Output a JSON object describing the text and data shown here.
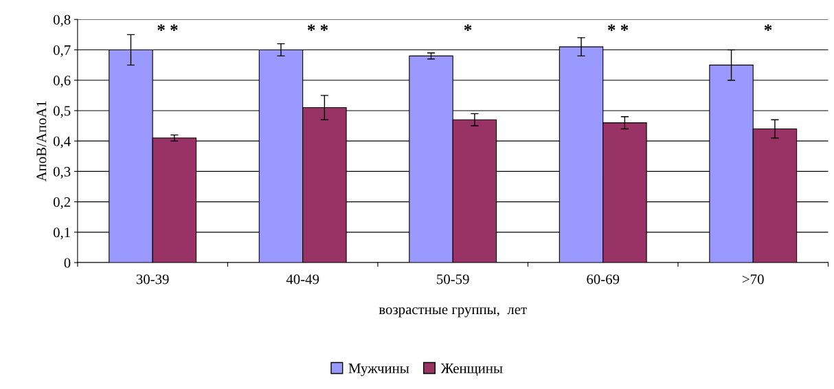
{
  "chart_data": {
    "type": "bar",
    "xlabel": "возрастные группы,  лет",
    "ylabel": "АпоВ/АпоА1",
    "categories": [
      "30-39",
      "40-49",
      "50-59",
      "60-69",
      ">70"
    ],
    "series": [
      {
        "name": "Мужчины",
        "color": "#9999ff",
        "values": [
          0.7,
          0.7,
          0.68,
          0.71,
          0.65
        ],
        "errors": [
          0.05,
          0.02,
          0.01,
          0.03,
          0.05
        ]
      },
      {
        "name": "Женщины",
        "color": "#993366",
        "values": [
          0.41,
          0.51,
          0.47,
          0.46,
          0.44
        ],
        "errors": [
          0.01,
          0.04,
          0.02,
          0.02,
          0.03
        ]
      }
    ],
    "ylim": [
      0,
      0.8
    ],
    "yticks": [
      {
        "value": 0,
        "label": "0"
      },
      {
        "value": 0.1,
        "label": "0,1"
      },
      {
        "value": 0.2,
        "label": "0,2"
      },
      {
        "value": 0.3,
        "label": "0,3"
      },
      {
        "value": 0.4,
        "label": "0,4"
      },
      {
        "value": 0.5,
        "label": "0,5"
      },
      {
        "value": 0.6,
        "label": "0,6"
      },
      {
        "value": 0.7,
        "label": "0,7"
      },
      {
        "value": 0.8,
        "label": "0,8"
      }
    ],
    "annotations": [
      "* *",
      "* *",
      "*",
      "* *",
      "*"
    ],
    "grid": "y",
    "legend": "bottom"
  }
}
